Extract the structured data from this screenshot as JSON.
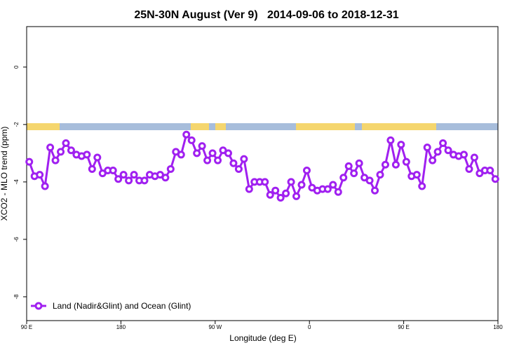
{
  "chart_data": {
    "type": "line",
    "title": "25N-30N August (Ver 9)   2014-09-06 to 2018-12-31",
    "x_label": "Longitude (deg E)",
    "y_label": "XCO2 - MLO trend (ppm)",
    "xlim": [
      90,
      540
    ],
    "ylim": [
      -8.83,
      1.41
    ],
    "xticks": [
      {
        "value": 90,
        "label": "90 E"
      },
      180,
      {
        "value": 270,
        "label": "90 W"
      },
      {
        "value": 360,
        "label": "0"
      },
      {
        "value": 450,
        "label": "90 E"
      },
      180
    ],
    "yticks": [
      0,
      -2,
      -4,
      -6,
      -8
    ],
    "x": [
      92.5,
      97.5,
      102.5,
      107.5,
      112.5,
      117.5,
      122.5,
      127.5,
      132.5,
      137.5,
      142.5,
      147.5,
      152.5,
      157.5,
      162.5,
      167.5,
      172.5,
      177.5,
      182.5,
      187.5,
      192.5,
      197.5,
      202.5,
      207.5,
      212.5,
      217.5,
      222.5,
      227.5,
      232.5,
      237.5,
      242.5,
      247.5,
      252.5,
      257.5,
      262.5,
      267.5,
      272.5,
      277.5,
      282.5,
      287.5,
      292.5,
      297.5,
      302.5,
      307.5,
      312.5,
      317.5,
      322.5,
      327.5,
      332.5,
      337.5,
      342.5,
      347.5,
      352.5,
      357.5,
      362.5,
      367.5,
      372.5,
      377.5,
      382.5,
      387.5,
      392.5,
      397.5,
      402.5,
      407.5,
      412.5,
      417.5,
      422.5,
      427.5,
      432.5,
      437.5,
      442.5,
      447.5,
      452.5,
      457.5,
      462.5,
      467.5,
      472.5,
      477.5,
      482.5,
      487.5,
      492.5,
      497.5,
      502.5,
      507.5,
      512.5,
      517.5,
      522.5,
      527.5,
      532.5,
      537.5
    ],
    "series": [
      {
        "name": "Land (Nadir&Glint) and Ocean (Glint)",
        "color": "#a020f0",
        "values": [
          -3.3,
          -3.8,
          -3.75,
          -4.15,
          -2.8,
          -3.25,
          -2.95,
          -2.65,
          -2.9,
          -3.05,
          -3.1,
          -3.05,
          -3.55,
          -3.15,
          -3.7,
          -3.6,
          -3.6,
          -3.9,
          -3.75,
          -3.95,
          -3.75,
          -3.95,
          -3.95,
          -3.75,
          -3.8,
          -3.75,
          -3.85,
          -3.55,
          -2.95,
          -3.05,
          -2.35,
          -2.55,
          -3.0,
          -2.75,
          -3.25,
          -3.0,
          -3.25,
          -2.9,
          -3.0,
          -3.35,
          -3.55,
          -3.2,
          -4.25,
          -4.0,
          -4.0,
          -4.0,
          -4.45,
          -4.3,
          -4.55,
          -4.4,
          -4.0,
          -4.5,
          -4.1,
          -3.6,
          -4.2,
          -4.3,
          -4.25,
          -4.25,
          -4.1,
          -4.35,
          -3.85,
          -3.45,
          -3.7,
          -3.35,
          -3.85,
          -3.95,
          -4.3,
          -3.75,
          -3.4,
          -2.55,
          -3.4,
          -2.7,
          -3.3,
          -3.8,
          -3.75,
          -4.15,
          -2.8,
          -3.25,
          -2.95,
          -2.65,
          -2.9,
          -3.05,
          -3.1,
          -3.05,
          -3.55,
          -3.15,
          -3.7,
          -3.6,
          -3.6,
          -3.9
        ]
      }
    ],
    "legend": "bottom-left"
  }
}
